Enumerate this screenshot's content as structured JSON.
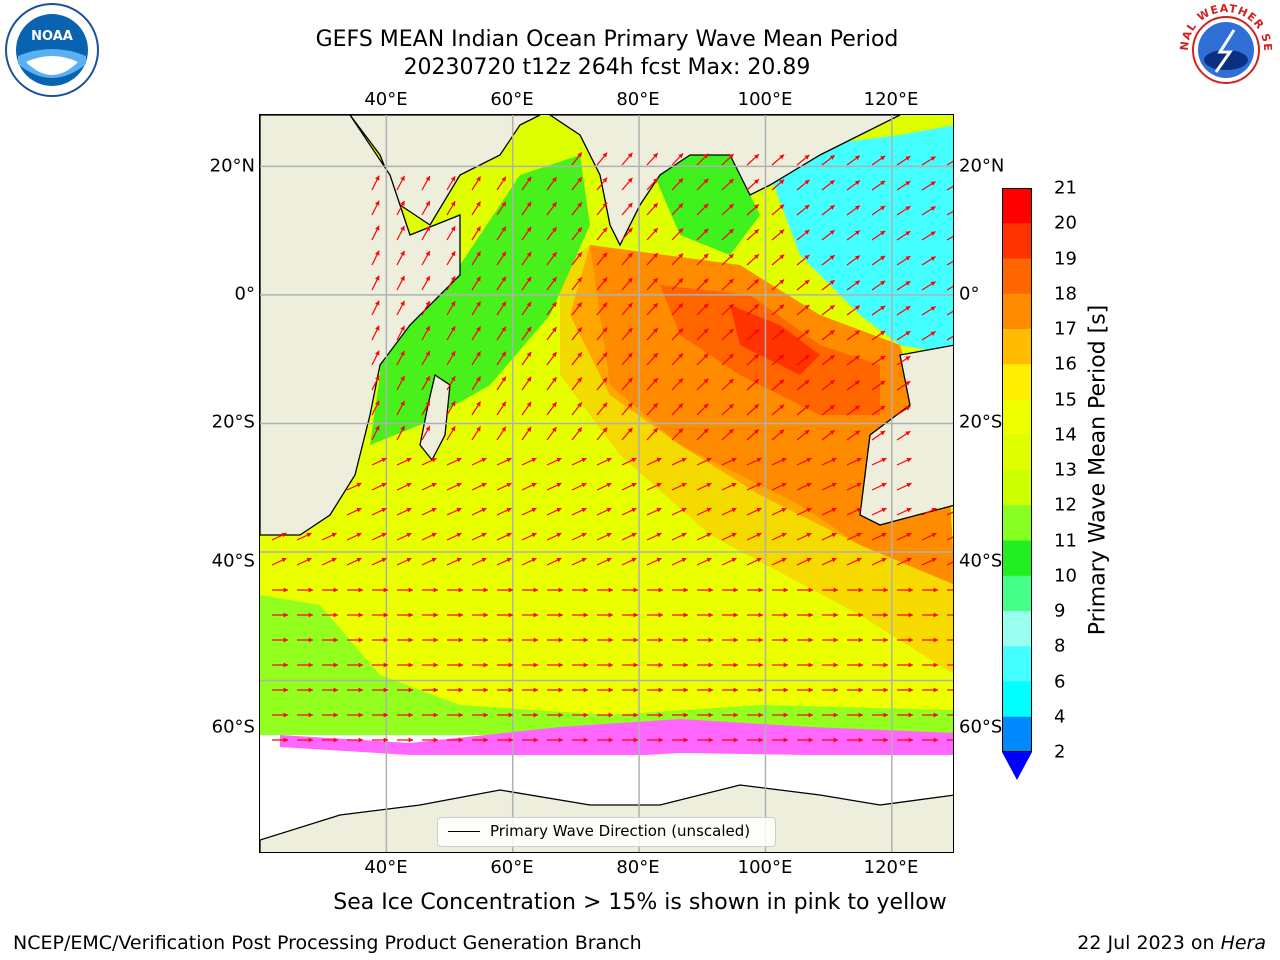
{
  "header": {
    "title_line1": "GEFS MEAN Indian Ocean Primary Wave Mean Period",
    "title_line2": "20230720 t12z 264h fcst   Max: 20.89"
  },
  "logos": {
    "noaa_text": "NOAA",
    "nws_text": "NATIONAL WEATHER SERVICE"
  },
  "map": {
    "lon_ticks": [
      "40°E",
      "60°E",
      "80°E",
      "100°E",
      "120°E"
    ],
    "lat_ticks": [
      "20°N",
      "0°",
      "20°S",
      "40°S",
      "60°S"
    ],
    "lon_values": [
      40,
      60,
      80,
      100,
      120
    ],
    "lat_values": [
      20,
      0,
      -20,
      -40,
      -60
    ],
    "lon_range": [
      20,
      130
    ],
    "lat_range": [
      28,
      -87
    ],
    "legend_label": "Primary Wave Direction (unscaled)",
    "land_color": "#eeeedd",
    "arrow_color": "#ff0000",
    "grid": true
  },
  "colorbar": {
    "label": "Primary Wave Mean Period [s]",
    "tick_labels": [
      "21",
      "20",
      "19",
      "18",
      "17",
      "16",
      "15",
      "14",
      "13",
      "12",
      "11",
      "10",
      "9",
      "8",
      "6",
      "4",
      "2"
    ],
    "bins": [
      {
        "from": 20,
        "to": 21,
        "color": "#ff0000"
      },
      {
        "from": 19,
        "to": 20,
        "color": "#ff3300"
      },
      {
        "from": 18,
        "to": 19,
        "color": "#ff6600"
      },
      {
        "from": 17,
        "to": 18,
        "color": "#ff8c00"
      },
      {
        "from": 16,
        "to": 17,
        "color": "#ffbb00"
      },
      {
        "from": 15,
        "to": 16,
        "color": "#ffee00"
      },
      {
        "from": 14,
        "to": 15,
        "color": "#eeff00"
      },
      {
        "from": 13,
        "to": 14,
        "color": "#ddff00"
      },
      {
        "from": 12,
        "to": 13,
        "color": "#ccff00"
      },
      {
        "from": 11,
        "to": 12,
        "color": "#88ff22"
      },
      {
        "from": 10,
        "to": 11,
        "color": "#22ee22"
      },
      {
        "from": 9,
        "to": 10,
        "color": "#44ff88"
      },
      {
        "from": 8,
        "to": 9,
        "color": "#99ffee"
      },
      {
        "from": 6,
        "to": 8,
        "color": "#44ffff"
      },
      {
        "from": 4,
        "to": 6,
        "color": "#00ffff"
      },
      {
        "from": 2,
        "to": 4,
        "color": "#0088ff"
      }
    ],
    "extend_color": "#0000ff"
  },
  "footer": {
    "note": "Sea Ice Concentration > 15% is shown in pink to yellow",
    "left": "NCEP/EMC/Verification Post Processing Product Generation Branch",
    "right_prefix": "22 Jul 2023 on ",
    "right_host": "Hera"
  }
}
